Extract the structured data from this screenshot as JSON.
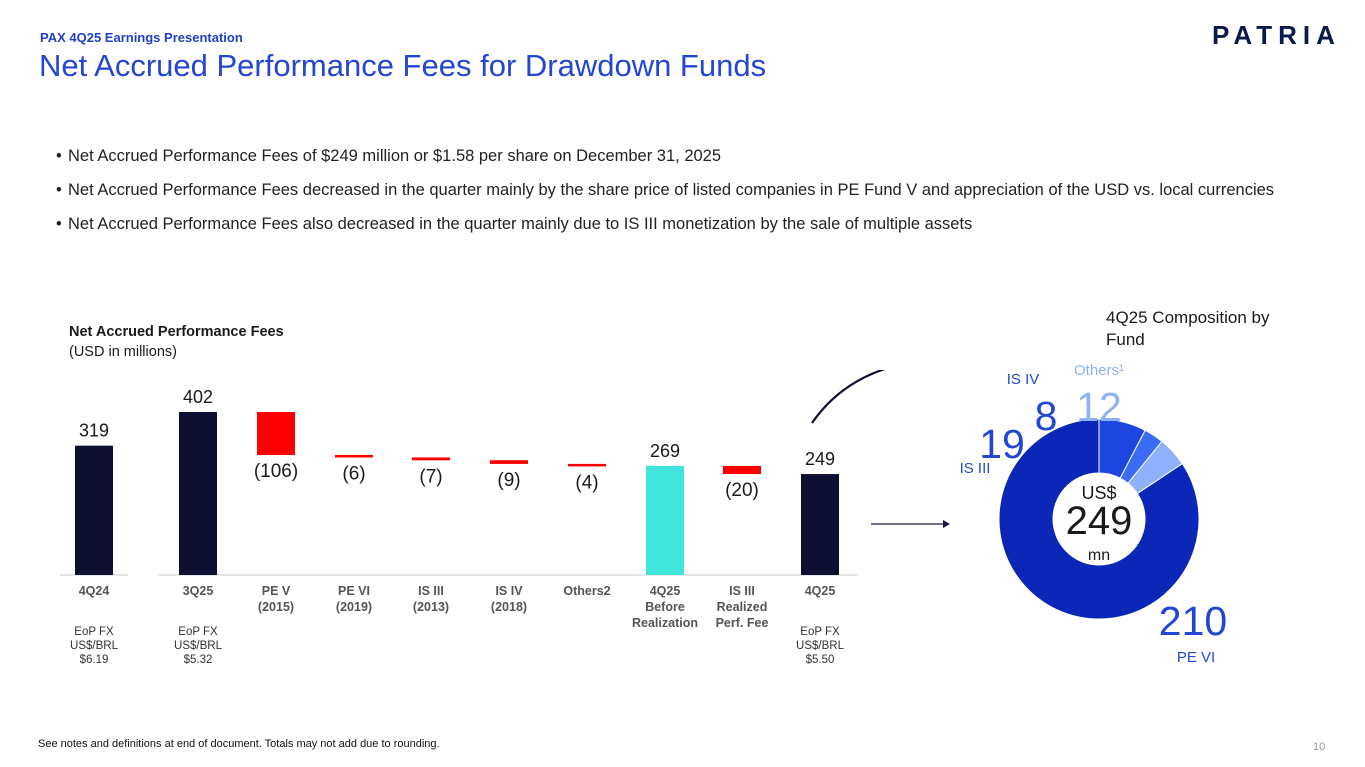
{
  "header": {
    "kicker": "PAX 4Q25 Earnings Presentation",
    "title": "Net Accrued Performance Fees for Drawdown Funds",
    "logo_text": "PATRIA"
  },
  "bullets": [
    "Net Accrued Performance Fees of $249 million or $1.58 per share on December 31, 2025",
    "Net Accrued Performance Fees decreased in the quarter mainly by the share price of listed companies in PE Fund V and appreciation of the USD vs. local currencies",
    "Net Accrued Performance Fees also decreased in the quarter mainly due to IS III monetization by the sale of multiple assets"
  ],
  "chart_data": [
    {
      "type": "bar",
      "subtype": "waterfall",
      "title": "Net Accrued Performance Fees",
      "subtitle": "(USD in millions)",
      "categories": [
        "4Q24",
        "3Q25",
        "PE V\n(2015)",
        "PE VI\n(2019)",
        "IS III\n(2013)",
        "IS IV\n(2018)",
        "Others2",
        "4Q25\nBefore\nRealization",
        "IS III\nRealized\nPerf. Fee",
        "4Q25"
      ],
      "values": [
        319,
        402,
        -106,
        -6,
        -7,
        -9,
        -4,
        269,
        -20,
        249
      ],
      "kinds": [
        "total",
        "total",
        "delta",
        "delta",
        "delta",
        "delta",
        "delta",
        "subtotal",
        "delta",
        "total"
      ],
      "labels": [
        "319",
        "402",
        "(106)",
        "(6)",
        "(7)",
        "(9)",
        "(4)",
        "269",
        "(20)",
        "249"
      ],
      "colors": {
        "total": "#0d0f33",
        "subtotal": "#40e6dc",
        "delta": "#ff0000",
        "axis": "#cccccc",
        "tick": "#555555"
      },
      "fx_notes": [
        {
          "index": 0,
          "label": "EoP FX\nUS$/BRL",
          "value": "$6.19"
        },
        {
          "index": 1,
          "label": "EoP FX\nUS$/BRL",
          "value": "$5.32"
        },
        {
          "index": 9,
          "label": "EoP FX\nUS$/BRL",
          "value": "$5.50"
        }
      ]
    },
    {
      "type": "pie",
      "subtype": "donut",
      "title": "4Q25 Composition by Fund",
      "center_top": "US$",
      "center_value": "249",
      "center_bottom": "mn",
      "slices": [
        {
          "name": "PE VI",
          "value": 210,
          "label": "210",
          "color": "#0a27b8"
        },
        {
          "name": "IS III",
          "value": 19,
          "label": "19",
          "color": "#1d46e0"
        },
        {
          "name": "IS IV",
          "value": 8,
          "label": "8",
          "color": "#3a6cf5"
        },
        {
          "name": "Others¹",
          "value": 12,
          "label": "12",
          "color": "#8db1fb"
        }
      ]
    }
  ],
  "footer": {
    "note": "See notes and definitions at end of document. Totals may not add due to rounding.",
    "page": "10"
  }
}
